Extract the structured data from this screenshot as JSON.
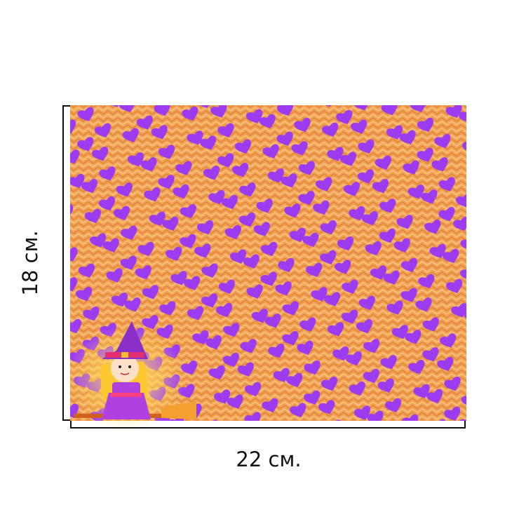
{
  "dimensions": {
    "height": "18 см.",
    "width": "22 см."
  }
}
